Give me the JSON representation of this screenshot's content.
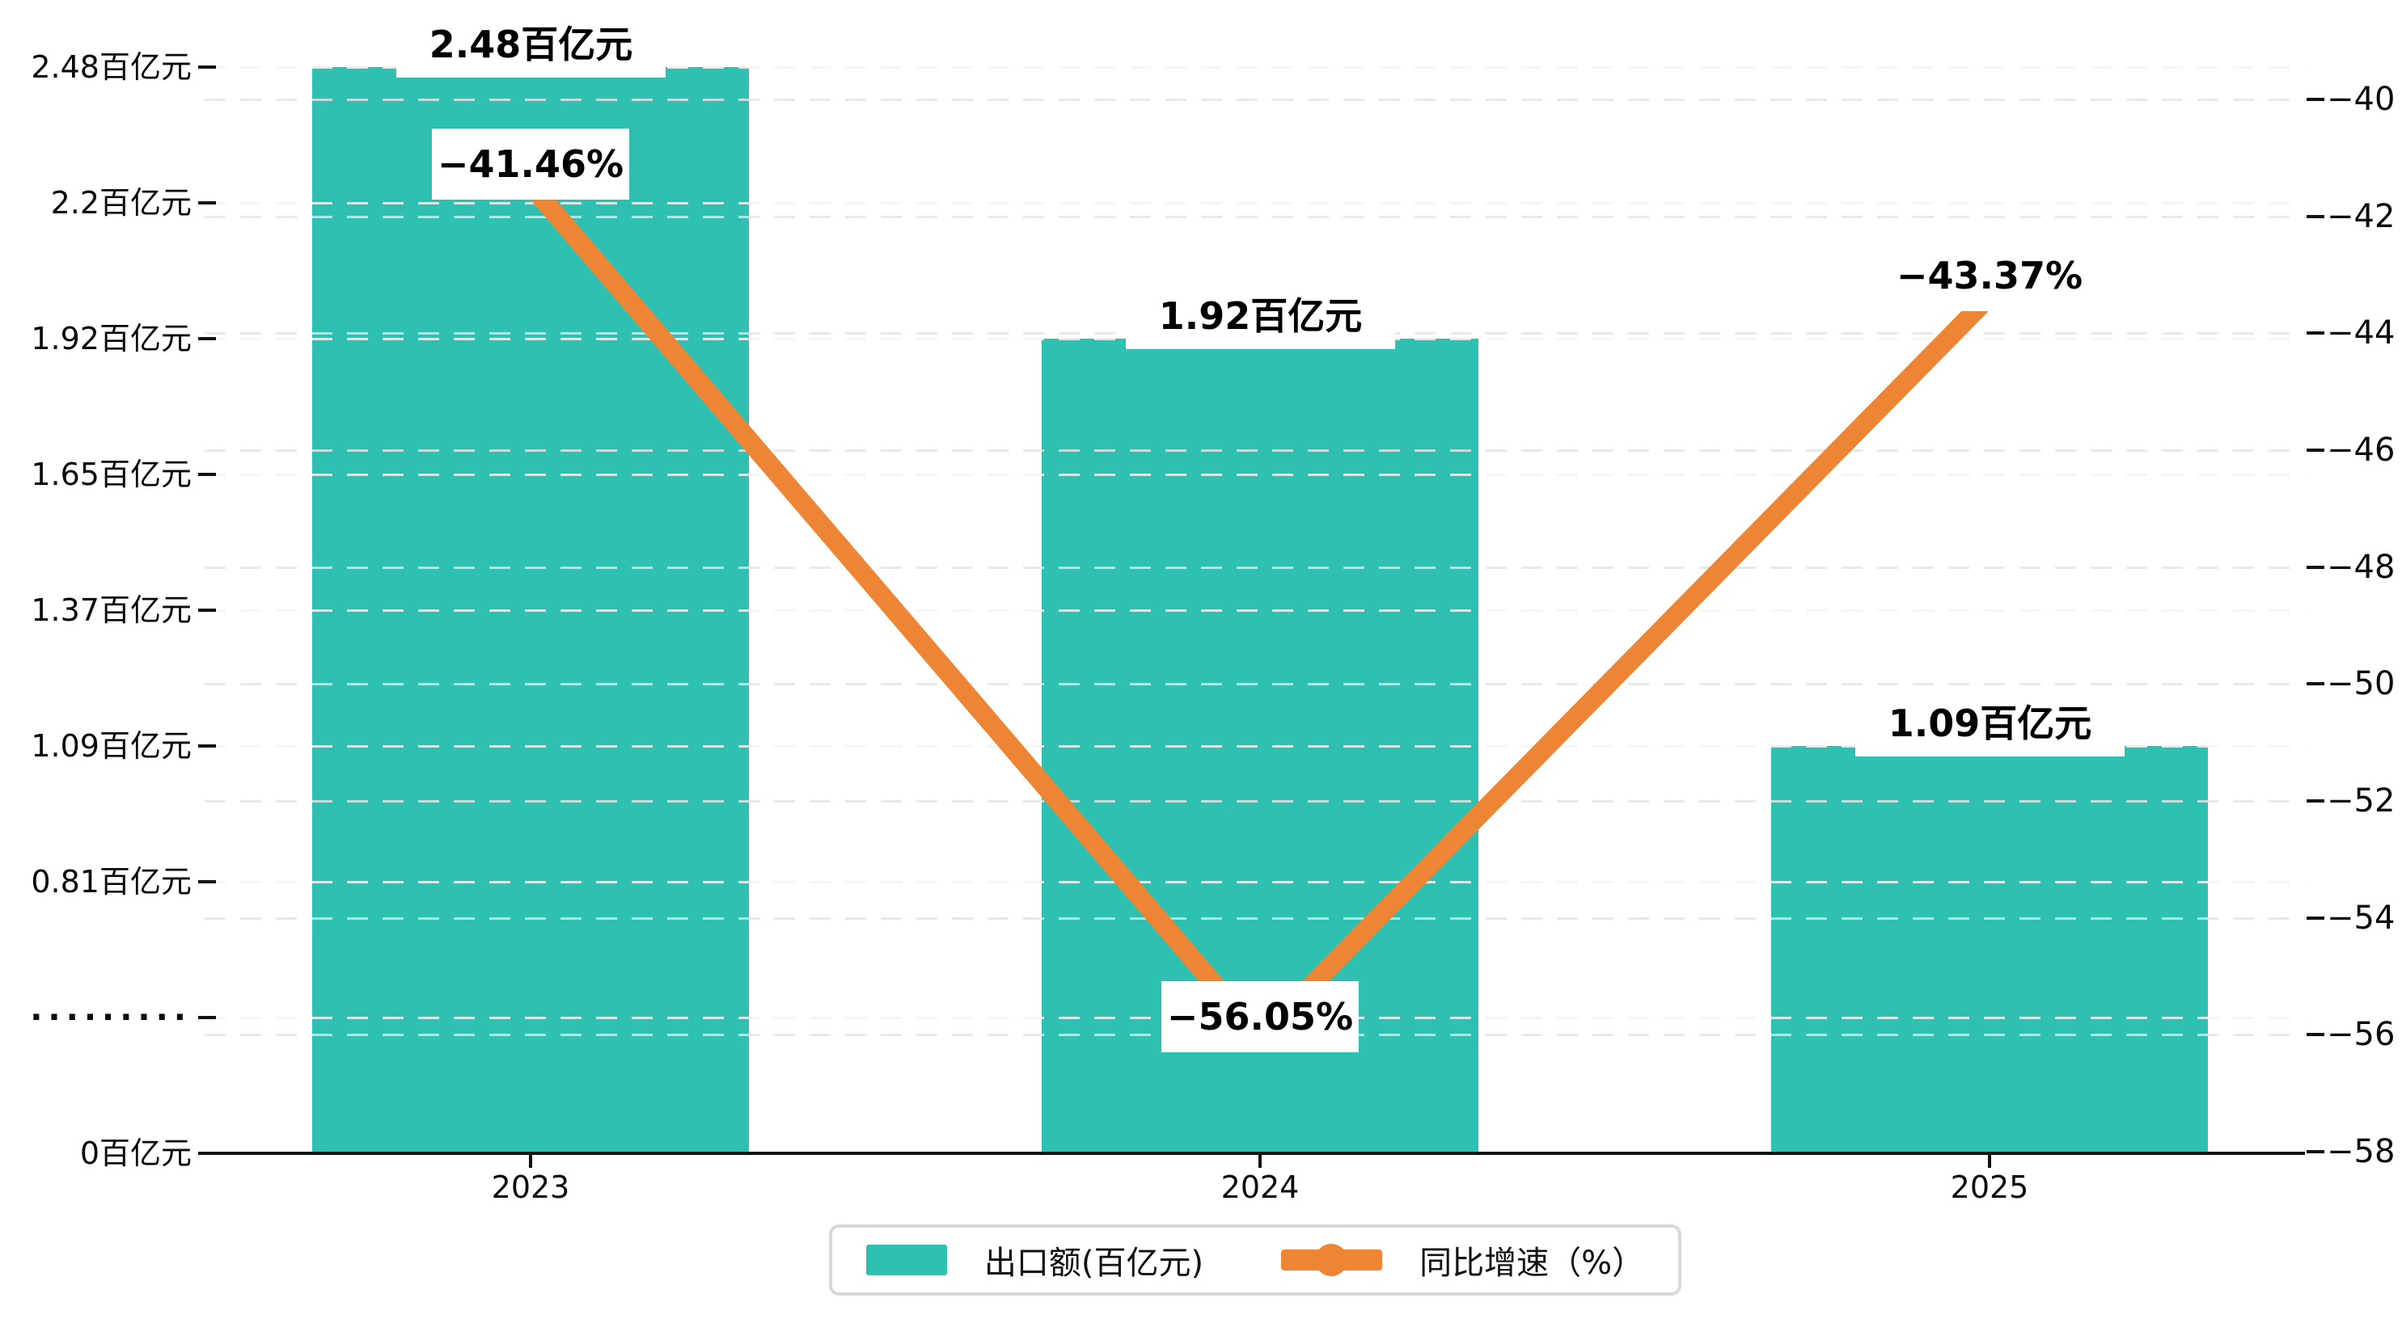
{
  "chart_data": {
    "type": "bar",
    "categories": [
      "2023",
      "2024",
      "2025"
    ],
    "series": [
      {
        "name": "出口额(百亿元)",
        "type": "bar",
        "axis": "left",
        "values": [
          2.48,
          1.92,
          1.09
        ],
        "labels": [
          "2.48百亿元",
          "1.92百亿元",
          "1.09百亿元"
        ],
        "color": "#2EC0B1"
      },
      {
        "name": "同比增速（%）",
        "type": "line",
        "axis": "right",
        "values": [
          -41.46,
          -56.05,
          -43.37
        ],
        "labels": [
          "−41.46%",
          "−56.05%",
          "−43.37%"
        ],
        "color": "#EE8535"
      }
    ],
    "left_axis": {
      "tick_labels": [
        "2.48百亿元",
        "2.2百亿元",
        "1.92百亿元",
        "1.65百亿元",
        "1.37百亿元",
        "1.09百亿元",
        "0.81百亿元",
        "·········",
        "0百亿元"
      ]
    },
    "right_axis": {
      "tick_labels": [
        "−40",
        "−42",
        "−44",
        "−46",
        "−48",
        "−50",
        "−52",
        "−54",
        "−56",
        "−58"
      ],
      "range": [
        -58,
        -40
      ]
    },
    "grid": true,
    "legend_position": "bottom-center",
    "colors": {
      "bar": "#2EC0B1",
      "line": "#EE8535",
      "axis": "#111111",
      "grid_left": "#f3f3f3",
      "grid_right": "#e4e4e4",
      "legend_border": "#d9d9d9",
      "label_bg": "#ffffff"
    }
  }
}
